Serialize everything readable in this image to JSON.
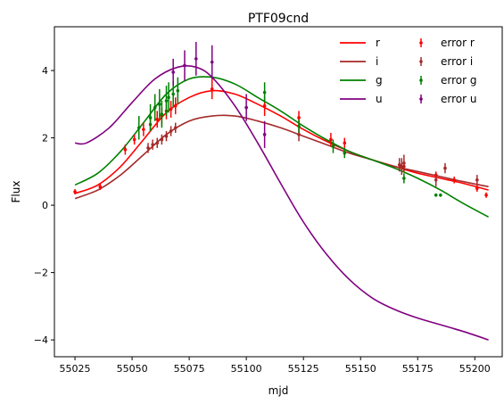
{
  "chart_data": {
    "type": "line",
    "title": "PTF09cnd",
    "xlabel": "mjd",
    "ylabel": "Flux",
    "xlim": [
      55016,
      55212
    ],
    "ylim": [
      -4.5,
      5.3
    ],
    "xticks": [
      55025,
      55050,
      55075,
      55100,
      55125,
      55150,
      55175,
      55200
    ],
    "yticks": [
      -4,
      -2,
      0,
      2,
      4
    ],
    "grid": false,
    "legend": {
      "placement": "top-right",
      "columns": 2
    },
    "series": [
      {
        "name": "r",
        "color": "#ff0000",
        "x": [
          55025,
          55035,
          55045,
          55055,
          55065,
          55075,
          55085,
          55095,
          55105,
          55115,
          55125,
          55135,
          55145,
          55155,
          55165,
          55175,
          55185,
          55195,
          55206
        ],
        "values": [
          0.35,
          0.6,
          1.15,
          1.95,
          2.75,
          3.2,
          3.4,
          3.3,
          3.0,
          2.65,
          2.25,
          1.9,
          1.6,
          1.35,
          1.15,
          0.95,
          0.8,
          0.65,
          0.45
        ]
      },
      {
        "name": "i",
        "color": "#a52a2a",
        "x": [
          55025,
          55035,
          55045,
          55055,
          55065,
          55075,
          55085,
          55095,
          55105,
          55115,
          55125,
          55135,
          55145,
          55155,
          55165,
          55175,
          55185,
          55195,
          55206
        ],
        "values": [
          0.2,
          0.45,
          0.9,
          1.5,
          2.1,
          2.5,
          2.65,
          2.65,
          2.5,
          2.3,
          2.05,
          1.8,
          1.55,
          1.35,
          1.15,
          1.0,
          0.85,
          0.7,
          0.55
        ]
      },
      {
        "name": "g",
        "color": "#008000",
        "x": [
          55025,
          55035,
          55045,
          55055,
          55065,
          55075,
          55085,
          55095,
          55105,
          55115,
          55125,
          55135,
          55145,
          55155,
          55165,
          55175,
          55185,
          55195,
          55206
        ],
        "values": [
          0.6,
          0.95,
          1.6,
          2.45,
          3.3,
          3.75,
          3.8,
          3.6,
          3.2,
          2.8,
          2.35,
          1.95,
          1.6,
          1.35,
          1.1,
          0.8,
          0.45,
          0.05,
          -0.35
        ]
      },
      {
        "name": "u",
        "color": "#800080",
        "x": [
          55025,
          55030,
          55040,
          55050,
          55060,
          55070,
          55078,
          55085,
          55095,
          55105,
          55115,
          55125,
          55135,
          55145,
          55155,
          55165,
          55175,
          55185,
          55195,
          55206
        ],
        "values": [
          1.85,
          1.85,
          2.3,
          3.05,
          3.75,
          4.1,
          4.1,
          3.8,
          2.95,
          1.85,
          0.65,
          -0.5,
          -1.45,
          -2.2,
          -2.75,
          -3.1,
          -3.35,
          -3.55,
          -3.75,
          -4.0
        ]
      }
    ],
    "error_series": [
      {
        "name": "error r",
        "color": "#ff0000",
        "points": [
          {
            "x": 55025,
            "y": 0.4,
            "err": 0.08
          },
          {
            "x": 55036,
            "y": 0.55,
            "err": 0.1
          },
          {
            "x": 55047,
            "y": 1.65,
            "err": 0.15
          },
          {
            "x": 55051,
            "y": 1.95,
            "err": 0.15
          },
          {
            "x": 55055,
            "y": 2.25,
            "err": 0.2
          },
          {
            "x": 55058,
            "y": 2.4,
            "err": 0.2
          },
          {
            "x": 55061,
            "y": 2.55,
            "err": 0.25
          },
          {
            "x": 55063,
            "y": 2.65,
            "err": 0.25
          },
          {
            "x": 55065,
            "y": 2.8,
            "err": 0.25
          },
          {
            "x": 55067,
            "y": 2.85,
            "err": 0.25
          },
          {
            "x": 55069,
            "y": 2.95,
            "err": 0.25
          },
          {
            "x": 55085,
            "y": 3.45,
            "err": 0.3
          },
          {
            "x": 55108,
            "y": 2.95,
            "err": 0.3
          },
          {
            "x": 55123,
            "y": 2.6,
            "err": 0.2
          },
          {
            "x": 55137,
            "y": 1.95,
            "err": 0.2
          },
          {
            "x": 55143,
            "y": 1.85,
            "err": 0.15
          },
          {
            "x": 55169,
            "y": 1.15,
            "err": 0.15
          },
          {
            "x": 55183,
            "y": 0.9,
            "err": 0.1
          },
          {
            "x": 55191,
            "y": 0.75,
            "err": 0.1
          },
          {
            "x": 55201,
            "y": 0.5,
            "err": 0.1
          },
          {
            "x": 55205,
            "y": 0.3,
            "err": 0.08
          }
        ]
      },
      {
        "name": "error i",
        "color": "#a52a2a",
        "points": [
          {
            "x": 55057,
            "y": 1.7,
            "err": 0.15
          },
          {
            "x": 55059,
            "y": 1.8,
            "err": 0.15
          },
          {
            "x": 55061,
            "y": 1.85,
            "err": 0.15
          },
          {
            "x": 55063,
            "y": 1.95,
            "err": 0.15
          },
          {
            "x": 55065,
            "y": 2.05,
            "err": 0.15
          },
          {
            "x": 55067,
            "y": 2.2,
            "err": 0.15
          },
          {
            "x": 55069,
            "y": 2.3,
            "err": 0.15
          },
          {
            "x": 55123,
            "y": 2.1,
            "err": 0.2
          },
          {
            "x": 55167,
            "y": 1.2,
            "err": 0.2
          },
          {
            "x": 55168,
            "y": 1.15,
            "err": 0.25
          },
          {
            "x": 55169,
            "y": 1.25,
            "err": 0.25
          },
          {
            "x": 55183,
            "y": 0.75,
            "err": 0.2
          },
          {
            "x": 55187,
            "y": 1.1,
            "err": 0.15
          },
          {
            "x": 55201,
            "y": 0.75,
            "err": 0.15
          }
        ]
      },
      {
        "name": "error g",
        "color": "#008000",
        "points": [
          {
            "x": 55053,
            "y": 2.3,
            "err": 0.35
          },
          {
            "x": 55058,
            "y": 2.6,
            "err": 0.4
          },
          {
            "x": 55060,
            "y": 2.9,
            "err": 0.4
          },
          {
            "x": 55062,
            "y": 3.0,
            "err": 0.45
          },
          {
            "x": 55063,
            "y": 2.7,
            "err": 0.4
          },
          {
            "x": 55065,
            "y": 3.1,
            "err": 0.45
          },
          {
            "x": 55066,
            "y": 3.2,
            "err": 0.45
          },
          {
            "x": 55068,
            "y": 3.3,
            "err": 0.4
          },
          {
            "x": 55070,
            "y": 3.4,
            "err": 0.4
          },
          {
            "x": 55108,
            "y": 3.35,
            "err": 0.3
          },
          {
            "x": 55123,
            "y": 2.35,
            "err": 0.2
          },
          {
            "x": 55138,
            "y": 1.75,
            "err": 0.2
          },
          {
            "x": 55143,
            "y": 1.55,
            "err": 0.15
          },
          {
            "x": 55169,
            "y": 0.8,
            "err": 0.15
          },
          {
            "x": 55183,
            "y": 0.3,
            "err": 0.05
          },
          {
            "x": 55185,
            "y": 0.3,
            "err": 0.05
          }
        ]
      },
      {
        "name": "error u",
        "color": "#800080",
        "points": [
          {
            "x": 55068,
            "y": 3.95,
            "err": 0.4
          },
          {
            "x": 55073,
            "y": 4.15,
            "err": 0.45
          },
          {
            "x": 55078,
            "y": 4.35,
            "err": 0.5
          },
          {
            "x": 55085,
            "y": 4.25,
            "err": 0.5
          },
          {
            "x": 55100,
            "y": 2.9,
            "err": 0.4
          },
          {
            "x": 55108,
            "y": 2.1,
            "err": 0.4
          }
        ]
      }
    ]
  }
}
